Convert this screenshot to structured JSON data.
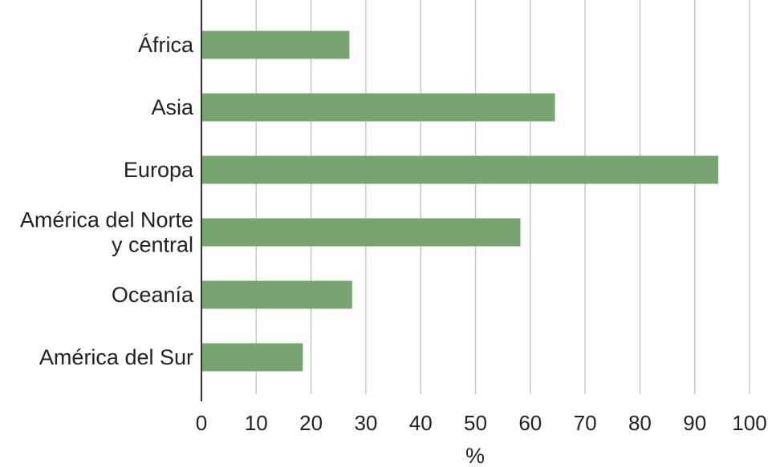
{
  "chart_data": {
    "type": "bar",
    "orientation": "horizontal",
    "categories": [
      [
        "África"
      ],
      [
        "Asia"
      ],
      [
        "Europa"
      ],
      [
        "América del Norte",
        "y central"
      ],
      [
        "Oceanía"
      ],
      [
        "América del Sur"
      ]
    ],
    "values": [
      27,
      64.5,
      94.3,
      58.2,
      27.5,
      18.5
    ],
    "xlabel": "%",
    "xlim": [
      0,
      100
    ],
    "xticks": [
      "0",
      "10",
      "20",
      "30",
      "40",
      "50",
      "60",
      "70",
      "80",
      "90",
      "100"
    ],
    "grid": "vertical",
    "bar_color": "#76a570",
    "grid_color": "#c8c8c8",
    "axis_color": "#333333"
  }
}
